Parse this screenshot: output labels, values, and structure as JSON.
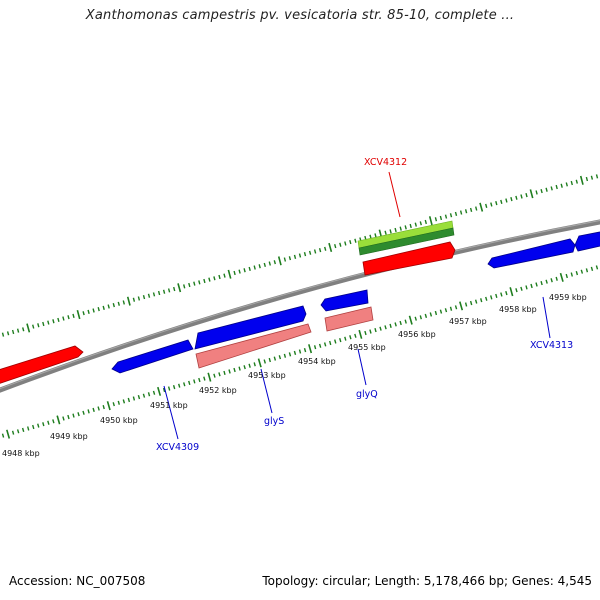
{
  "header": {
    "title": "Xanthomonas campestris pv. vesicatoria str. 85-10, complete ..."
  },
  "footer": {
    "accession": "Accession: NC_007508",
    "summary": "Topology: circular; Length: 5,178,466 bp; Genes: 4,545"
  },
  "colors": {
    "backbone": "#808080",
    "tick": "#1e7d1e",
    "forward_gene": "#ff0000",
    "reverse_gene": "#0000ee",
    "rna_gene": "#f08080",
    "gc_light": "#9ade3a",
    "gc_dark": "#2e8b2e",
    "label_red": "#e00000",
    "label_blue": "#0000cc"
  },
  "axis": {
    "unit": "kbp",
    "tick_labels": [
      "4948 kbp",
      "4949 kbp",
      "4950 kbp",
      "4951 kbp",
      "4952 kbp",
      "4953 kbp",
      "4954 kbp",
      "4955 kbp",
      "4956 kbp",
      "4957 kbp",
      "4958 kbp",
      "4959 kbp"
    ]
  },
  "gene_labels": [
    {
      "text": "XCV4312",
      "color": "red"
    },
    {
      "text": "XCV4309",
      "color": "blue"
    },
    {
      "text": "glyS",
      "color": "blue"
    },
    {
      "text": "glyQ",
      "color": "blue"
    },
    {
      "text": "XCV4313",
      "color": "blue"
    }
  ]
}
